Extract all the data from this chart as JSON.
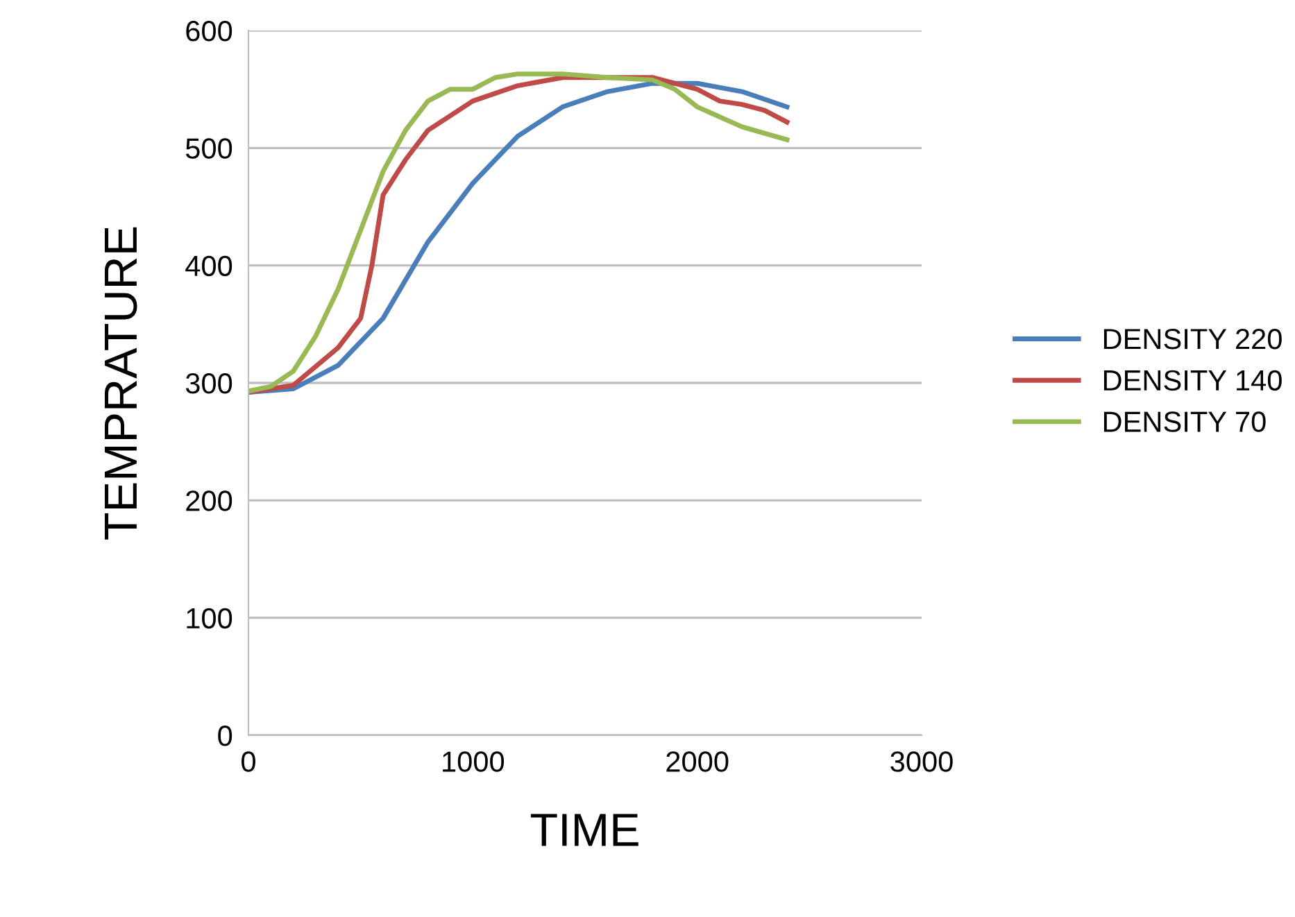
{
  "chart_data": {
    "type": "line",
    "xlabel": "TIME",
    "ylabel": "TEMPRATURE",
    "xlim": [
      0,
      3000
    ],
    "xticks": [
      0,
      1000,
      2000,
      3000
    ],
    "ylim": [
      0,
      600
    ],
    "yticks": [
      0,
      100,
      200,
      300,
      400,
      500,
      600
    ],
    "grid": "y",
    "legend": "right",
    "marker": "none",
    "line_style": "solid",
    "series": [
      {
        "name": "DENSITY 220",
        "color": "#4a7ebb",
        "x": [
          0,
          200,
          400,
          600,
          800,
          1000,
          1200,
          1400,
          1600,
          1800,
          2000,
          2200,
          2400
        ],
        "values": [
          292,
          295,
          315,
          355,
          420,
          470,
          510,
          535,
          548,
          555,
          555,
          548,
          535
        ]
      },
      {
        "name": "DENSITY 140",
        "color": "#be4b48",
        "x": [
          0,
          200,
          400,
          500,
          550,
          600,
          700,
          800,
          1000,
          1200,
          1400,
          1600,
          1800,
          2000,
          2100,
          2200,
          2300,
          2400
        ],
        "values": [
          292,
          298,
          330,
          355,
          400,
          460,
          490,
          515,
          540,
          553,
          560,
          560,
          560,
          550,
          540,
          537,
          532,
          522
        ]
      },
      {
        "name": "DENSITY 70",
        "color": "#98b954",
        "x": [
          0,
          100,
          200,
          300,
          400,
          500,
          600,
          700,
          800,
          900,
          1000,
          1100,
          1200,
          1400,
          1600,
          1800,
          1900,
          2000,
          2200,
          2400
        ],
        "values": [
          293,
          297,
          310,
          340,
          380,
          430,
          480,
          515,
          540,
          550,
          550,
          560,
          563,
          563,
          560,
          558,
          550,
          535,
          518,
          507
        ]
      }
    ]
  }
}
